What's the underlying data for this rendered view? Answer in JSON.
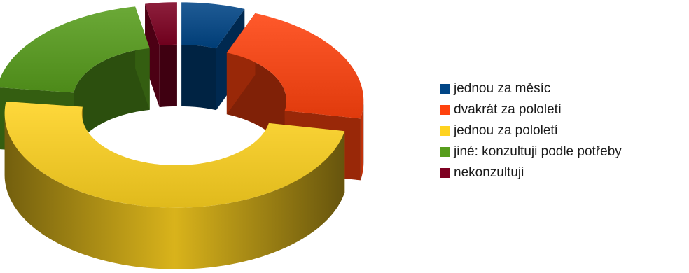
{
  "chart_data": {
    "type": "pie",
    "variant": "3d-donut-exploded",
    "categories": [
      "jednou za měsíc",
      "dvakrát za pololetí",
      "jednou za pololetí",
      "jiné: konzultuji podle potřeby",
      "nekonzultuji"
    ],
    "values": [
      6,
      22,
      49,
      20,
      3
    ],
    "colors": [
      "#004586",
      "#ff420e",
      "#ffd320",
      "#579d1c",
      "#7e0021"
    ],
    "legend_position": "right"
  }
}
